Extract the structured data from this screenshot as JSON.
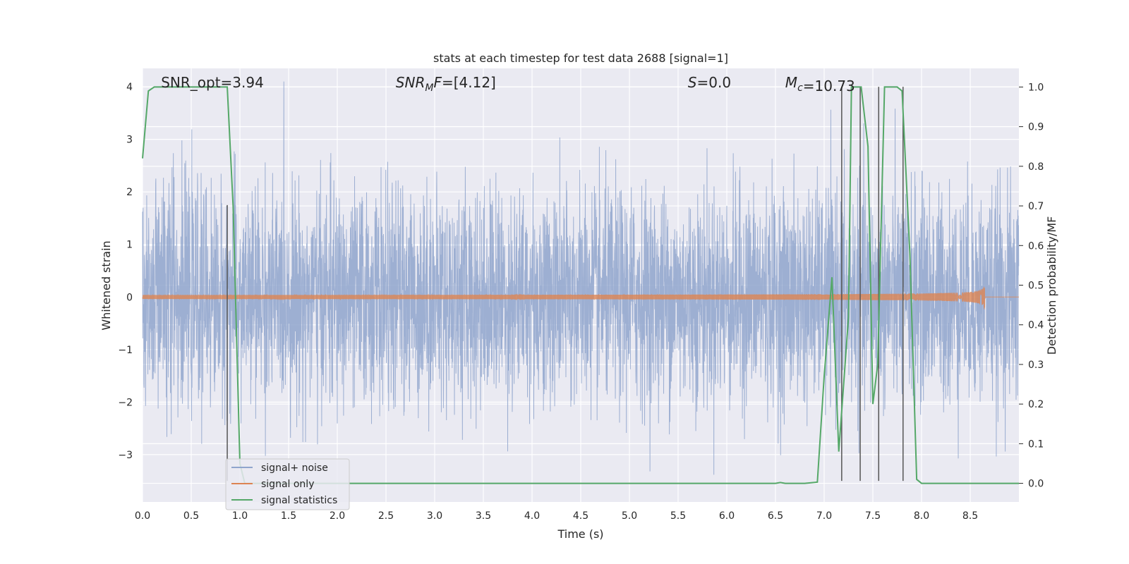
{
  "chart_data": {
    "type": "line",
    "title": "stats at each timestep for test data 2688 [signal=1]",
    "xlabel": "Time (s)",
    "ylabel_left": "Whitened strain",
    "ylabel_right": "Detection probability/MF",
    "xlim": [
      0.0,
      9.0
    ],
    "ylim_left": [
      -3.9,
      4.35
    ],
    "ylim_right": [
      -0.047,
      1.047
    ],
    "x_ticks": [
      "0.0",
      "0.5",
      "1.0",
      "1.5",
      "2.0",
      "2.5",
      "3.0",
      "3.5",
      "4.0",
      "4.5",
      "5.0",
      "5.5",
      "6.0",
      "6.5",
      "7.0",
      "7.5",
      "8.0",
      "8.5"
    ],
    "y_left_ticks": [
      "−3",
      "−2",
      "−1",
      "0",
      "1",
      "2",
      "3",
      "4"
    ],
    "y_right_ticks": [
      "0.0",
      "0.1",
      "0.2",
      "0.3",
      "0.4",
      "0.5",
      "0.6",
      "0.7",
      "0.8",
      "0.9",
      "1.0"
    ],
    "grid": true,
    "legend_position": "lower-left",
    "annotations": [
      {
        "name": "snr-opt",
        "label": "SNR_opt",
        "value": "=3.94",
        "x": 0.19
      },
      {
        "name": "snr-mf",
        "label": "SNR",
        "sub": "M",
        "suffix": "F",
        "value": "=[4.12]",
        "x": 2.6
      },
      {
        "name": "s-stat",
        "label": "S",
        "value": "=0.0",
        "x": 5.6
      },
      {
        "name": "chirp-mass",
        "label": "M",
        "sub": "c",
        "value": "=10.73",
        "x": 6.6
      }
    ],
    "series": [
      {
        "name": "signal+ noise",
        "color": "#8fa5cd",
        "axis": "left",
        "description_kind": "whitened noise, roughly gaussian, sd approx 1",
        "sample_rate": 512,
        "std": 1.0
      },
      {
        "name": "signal only",
        "color": "#dd8452",
        "axis": "left",
        "description_kind": "chirp",
        "t_merge": 8.65,
        "peak_amplitude": 0.55
      },
      {
        "name": "signal statistics",
        "color": "#55a868",
        "axis": "right",
        "x": [
          0.0,
          0.06,
          0.12,
          0.2,
          0.3,
          0.4,
          0.5,
          0.6,
          0.7,
          0.8,
          0.87,
          0.93,
          1.0,
          1.05,
          1.5,
          2.0,
          2.5,
          3.0,
          3.5,
          4.0,
          4.5,
          5.0,
          5.5,
          6.0,
          6.5,
          6.55,
          6.6,
          6.8,
          6.93,
          7.0,
          7.08,
          7.15,
          7.25,
          7.28,
          7.32,
          7.38,
          7.45,
          7.5,
          7.55,
          7.62,
          7.68,
          7.75,
          7.8,
          7.88,
          7.95,
          8.0,
          8.5,
          9.0
        ],
        "values": [
          0.82,
          0.99,
          1.0,
          1.0,
          1.0,
          1.0,
          1.0,
          1.0,
          1.0,
          1.0,
          1.0,
          0.7,
          0.05,
          0.0,
          0.0,
          0.0,
          0.0,
          0.0,
          0.0,
          0.0,
          0.0,
          0.0,
          0.0,
          0.0,
          0.0,
          0.002,
          0.0,
          0.0,
          0.003,
          0.27,
          0.52,
          0.08,
          0.42,
          1.0,
          1.0,
          1.0,
          0.85,
          0.2,
          0.3,
          1.0,
          1.0,
          1.0,
          0.99,
          0.58,
          0.01,
          0.0,
          0.0,
          0.0
        ]
      }
    ],
    "vertical_markers": [
      {
        "x": 0.87,
        "y_from": -3.5,
        "y_to": 1.75
      },
      {
        "x": 7.18,
        "y_from": -3.5,
        "y_to": 4.0
      },
      {
        "x": 7.37,
        "y_from": -3.5,
        "y_to": 4.0
      },
      {
        "x": 7.56,
        "y_from": -3.5,
        "y_to": 4.0
      },
      {
        "x": 7.81,
        "y_from": -3.5,
        "y_to": 4.0
      }
    ]
  }
}
